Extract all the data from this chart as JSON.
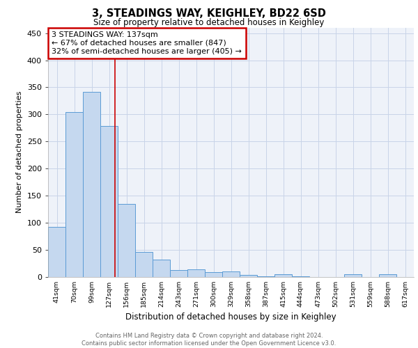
{
  "title1": "3, STEADINGS WAY, KEIGHLEY, BD22 6SD",
  "title2": "Size of property relative to detached houses in Keighley",
  "xlabel": "Distribution of detached houses by size in Keighley",
  "ylabel": "Number of detached properties",
  "bar_labels": [
    "41sqm",
    "70sqm",
    "99sqm",
    "127sqm",
    "156sqm",
    "185sqm",
    "214sqm",
    "243sqm",
    "271sqm",
    "300sqm",
    "329sqm",
    "358sqm",
    "387sqm",
    "415sqm",
    "444sqm",
    "473sqm",
    "502sqm",
    "531sqm",
    "559sqm",
    "588sqm",
    "617sqm"
  ],
  "bar_values": [
    92,
    304,
    341,
    278,
    134,
    46,
    31,
    12,
    13,
    9,
    10,
    3,
    1,
    4,
    1,
    0,
    0,
    5,
    0,
    4,
    0
  ],
  "bar_color": "#c5d8ef",
  "bar_edge_color": "#5b9bd5",
  "grid_color": "#c8d4e8",
  "background_color": "#eef2f9",
  "red_line_x": 3.35,
  "annotation_text": "3 STEADINGS WAY: 137sqm\n← 67% of detached houses are smaller (847)\n32% of semi-detached houses are larger (405) →",
  "annotation_box_color": "#ffffff",
  "annotation_box_edge": "#cc0000",
  "footer_text": "Contains HM Land Registry data © Crown copyright and database right 2024.\nContains public sector information licensed under the Open Government Licence v3.0.",
  "ylim": [
    0,
    460
  ],
  "yticks": [
    0,
    50,
    100,
    150,
    200,
    250,
    300,
    350,
    400,
    450
  ]
}
